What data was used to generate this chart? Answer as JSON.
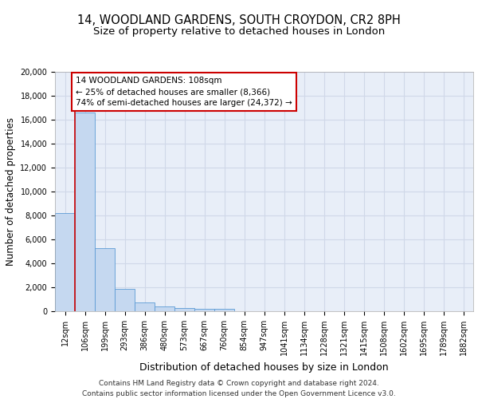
{
  "title_line1": "14, WOODLAND GARDENS, SOUTH CROYDON, CR2 8PH",
  "title_line2": "Size of property relative to detached houses in London",
  "xlabel": "Distribution of detached houses by size in London",
  "ylabel": "Number of detached properties",
  "categories": [
    "12sqm",
    "106sqm",
    "199sqm",
    "293sqm",
    "386sqm",
    "480sqm",
    "573sqm",
    "667sqm",
    "760sqm",
    "854sqm",
    "947sqm",
    "1041sqm",
    "1134sqm",
    "1228sqm",
    "1321sqm",
    "1415sqm",
    "1508sqm",
    "1602sqm",
    "1695sqm",
    "1789sqm",
    "1882sqm"
  ],
  "bar_heights": [
    8200,
    16600,
    5300,
    1850,
    750,
    380,
    280,
    230,
    200,
    0,
    0,
    0,
    0,
    0,
    0,
    0,
    0,
    0,
    0,
    0,
    0
  ],
  "bar_color": "#c5d8f0",
  "bar_edge_color": "#5b9bd5",
  "annotation_text": "14 WOODLAND GARDENS: 108sqm\n← 25% of detached houses are smaller (8,366)\n74% of semi-detached houses are larger (24,372) →",
  "annotation_box_color": "#ffffff",
  "annotation_box_edge": "#cc0000",
  "ylim": [
    0,
    20000
  ],
  "yticks": [
    0,
    2000,
    4000,
    6000,
    8000,
    10000,
    12000,
    14000,
    16000,
    18000,
    20000
  ],
  "grid_color": "#d0d8e8",
  "background_color": "#e8eef8",
  "footer_line1": "Contains HM Land Registry data © Crown copyright and database right 2024.",
  "footer_line2": "Contains public sector information licensed under the Open Government Licence v3.0.",
  "red_line_color": "#cc0000",
  "title_fontsize": 10.5,
  "subtitle_fontsize": 9.5,
  "tick_fontsize": 7,
  "ylabel_fontsize": 8.5,
  "xlabel_fontsize": 9,
  "footer_fontsize": 6.5
}
